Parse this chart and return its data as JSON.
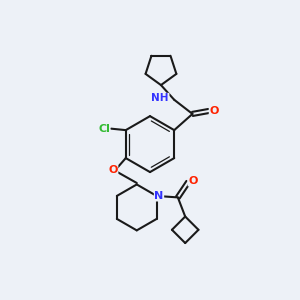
{
  "bg_color": "#edf1f7",
  "bond_color": "#1a1a1a",
  "atom_colors": {
    "N": "#3333ff",
    "O": "#ff2200",
    "Cl": "#33bb33",
    "C": "#1a1a1a"
  },
  "figsize": [
    3.0,
    3.0
  ],
  "dpi": 100,
  "lw": 1.5,
  "inner_lw": 0.9,
  "font_size": 8.0
}
